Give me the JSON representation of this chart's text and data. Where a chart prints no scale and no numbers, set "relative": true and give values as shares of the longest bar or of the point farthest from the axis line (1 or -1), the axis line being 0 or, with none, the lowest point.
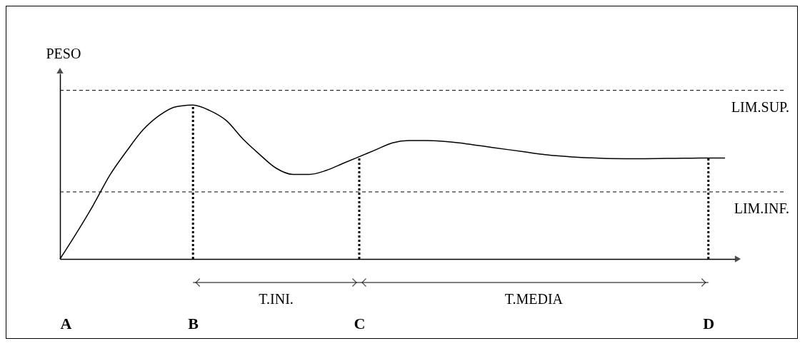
{
  "chart_data": {
    "type": "line",
    "ylabel": "PESO",
    "relative": true,
    "categories": [
      "A",
      null,
      null,
      null,
      null,
      null,
      null,
      null,
      "B",
      null,
      null,
      null,
      null,
      null,
      null,
      null,
      null,
      null,
      "C",
      null,
      null,
      null,
      null,
      null,
      null,
      null,
      null,
      null,
      null,
      null,
      null,
      null,
      null,
      null,
      null,
      null,
      null,
      null,
      null,
      "D",
      null
    ],
    "series": [
      {
        "color": "#000000",
        "values": [
          0,
          0.17,
          0.35,
          0.545,
          0.7,
          0.84,
          0.935,
          0.99,
          1,
          0.965,
          0.9,
          0.78,
          0.68,
          0.59,
          0.55,
          0.55,
          0.575,
          0.62,
          0.665,
          0.71,
          0.755,
          0.77,
          0.77,
          0.765,
          0.755,
          0.74,
          0.725,
          0.71,
          0.695,
          0.68,
          0.67,
          0.662,
          0.657,
          0.653,
          0.652,
          0.652,
          0.653,
          0.654,
          0.655,
          0.656,
          0.656
        ]
      }
    ],
    "ref_lines": [
      {
        "axis": "y",
        "value": 1.096,
        "label": "LIM.SUP.",
        "line_style": "dashed"
      },
      {
        "axis": "y",
        "value": 0.436,
        "label": "LIM.INF.",
        "line_style": "dashed"
      },
      {
        "axis": "x",
        "value": "B",
        "line_style": "dotted"
      },
      {
        "axis": "x",
        "value": "C",
        "line_style": "dotted"
      },
      {
        "axis": "x",
        "value": "D",
        "line_style": "dotted"
      }
    ],
    "annotations": [
      "T.INI.",
      "T.MEDIA"
    ],
    "line_style": "solid"
  }
}
